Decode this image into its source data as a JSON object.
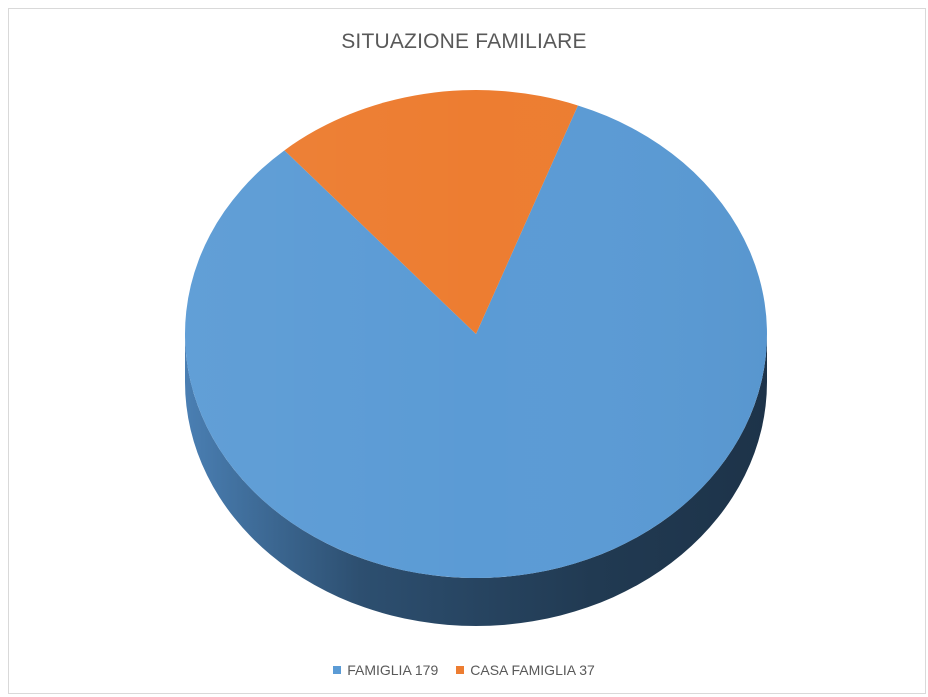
{
  "chart_data": {
    "type": "pie",
    "style": "3d",
    "title": "SITUAZIONE FAMILIARE",
    "series": [
      {
        "name": "FAMIGLIA",
        "value": 179,
        "label": "FAMIGLIA 179",
        "color": "#5b9bd5"
      },
      {
        "name": "CASA FAMIGLIA",
        "value": 37,
        "label": "CASA FAMIGLIA 37",
        "color": "#ed7d31"
      }
    ],
    "legend_position": "bottom"
  }
}
